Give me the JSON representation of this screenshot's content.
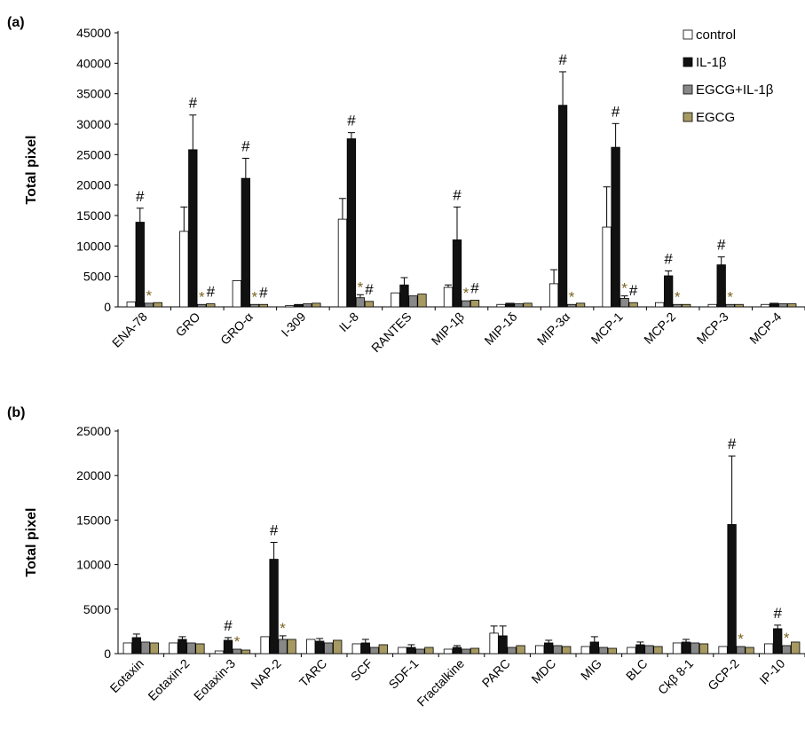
{
  "chart_data": [
    {
      "panel_label": "(a)",
      "type": "bar",
      "ylabel": "Total pixel",
      "ylim": [
        0,
        45000
      ],
      "yticks": [
        0,
        5000,
        10000,
        15000,
        20000,
        25000,
        30000,
        35000,
        40000,
        45000
      ],
      "categories": [
        "ENA-78",
        "GRO",
        "GRO-α",
        "I-309",
        "IL-8",
        "RANTES",
        "MIP-1β",
        "MIP-1δ",
        "MIP-3α",
        "MCP-1",
        "MCP-2",
        "MCP-3",
        "MCP-4"
      ],
      "series": [
        {
          "name": "control",
          "color": "#ffffff",
          "values": [
            800,
            12400,
            4300,
            200,
            14400,
            2300,
            3200,
            400,
            3800,
            13100,
            700,
            400,
            400
          ],
          "errors": [
            0,
            4000,
            0,
            0,
            3400,
            0,
            400,
            0,
            2300,
            6600,
            0,
            0,
            0
          ]
        },
        {
          "name": "IL-1β",
          "color": "#111111",
          "values": [
            13900,
            25800,
            21100,
            400,
            27600,
            3600,
            11000,
            600,
            33100,
            26200,
            5100,
            6900,
            600
          ],
          "errors": [
            2300,
            5700,
            3300,
            0,
            1000,
            1200,
            5400,
            0,
            5500,
            3900,
            800,
            1300,
            0
          ]
        },
        {
          "name": "EGCG+IL-1β",
          "color": "#888888",
          "values": [
            600,
            400,
            400,
            500,
            1500,
            1800,
            1000,
            500,
            400,
            1400,
            400,
            400,
            500
          ],
          "errors": [
            0,
            0,
            0,
            0,
            500,
            0,
            0,
            0,
            0,
            400,
            0,
            0,
            0
          ]
        },
        {
          "name": "EGCG",
          "color": "#a69a62",
          "values": [
            700,
            500,
            400,
            600,
            900,
            2100,
            1100,
            600,
            600,
            700,
            400,
            400,
            500
          ],
          "errors": [
            0,
            0,
            0,
            0,
            0,
            0,
            0,
            0,
            0,
            0,
            0,
            0,
            0
          ]
        }
      ],
      "annotations": [
        {
          "category": "ENA-78",
          "series": "IL-1β",
          "text": "#"
        },
        {
          "category": "ENA-78",
          "series": "EGCG+IL-1β",
          "text": "*"
        },
        {
          "category": "GRO",
          "series": "IL-1β",
          "text": "#"
        },
        {
          "category": "GRO",
          "series": "EGCG+IL-1β",
          "text": "*"
        },
        {
          "category": "GRO",
          "series": "EGCG",
          "text": "#"
        },
        {
          "category": "GRO-α",
          "series": "IL-1β",
          "text": "#"
        },
        {
          "category": "GRO-α",
          "series": "EGCG+IL-1β",
          "text": "*"
        },
        {
          "category": "GRO-α",
          "series": "EGCG",
          "text": "#"
        },
        {
          "category": "IL-8",
          "series": "IL-1β",
          "text": "#"
        },
        {
          "category": "IL-8",
          "series": "EGCG+IL-1β",
          "text": "*"
        },
        {
          "category": "IL-8",
          "series": "EGCG",
          "text": "#"
        },
        {
          "category": "MIP-1β",
          "series": "IL-1β",
          "text": "#"
        },
        {
          "category": "MIP-1β",
          "series": "EGCG+IL-1β",
          "text": "*"
        },
        {
          "category": "MIP-1β",
          "series": "EGCG",
          "text": "#"
        },
        {
          "category": "MIP-3α",
          "series": "IL-1β",
          "text": "#"
        },
        {
          "category": "MIP-3α",
          "series": "EGCG+IL-1β",
          "text": "*"
        },
        {
          "category": "MCP-1",
          "series": "IL-1β",
          "text": "#"
        },
        {
          "category": "MCP-1",
          "series": "EGCG+IL-1β",
          "text": "*"
        },
        {
          "category": "MCP-1",
          "series": "EGCG",
          "text": "#"
        },
        {
          "category": "MCP-2",
          "series": "IL-1β",
          "text": "#"
        },
        {
          "category": "MCP-2",
          "series": "EGCG+IL-1β",
          "text": "*"
        },
        {
          "category": "MCP-3",
          "series": "IL-1β",
          "text": "#"
        },
        {
          "category": "MCP-3",
          "series": "EGCG+IL-1β",
          "text": "*"
        }
      ],
      "legend": {
        "placement": "top-right"
      }
    },
    {
      "panel_label": "(b)",
      "type": "bar",
      "ylabel": "Total pixel",
      "ylim": [
        0,
        25000
      ],
      "yticks": [
        0,
        5000,
        10000,
        15000,
        20000,
        25000
      ],
      "categories": [
        "Eotaxin",
        "Eotaxin-2",
        "Eotaxin-3",
        "NAP-2",
        "TARC",
        "SCF",
        "SDF-1",
        "Fractalkine",
        "PARC",
        "MDC",
        "MIG",
        "BLC",
        "Ckβ 8-1",
        "GCP-2",
        "IP-10"
      ],
      "series": [
        {
          "name": "control",
          "color": "#ffffff",
          "values": [
            1200,
            1200,
            300,
            1900,
            1600,
            1100,
            700,
            500,
            2300,
            900,
            800,
            700,
            1200,
            800,
            1100
          ],
          "errors": [
            0,
            0,
            0,
            0,
            0,
            0,
            0,
            0,
            800,
            0,
            0,
            0,
            0,
            0,
            0
          ]
        },
        {
          "name": "IL-1β",
          "color": "#111111",
          "values": [
            1800,
            1600,
            1500,
            10600,
            1400,
            1200,
            700,
            700,
            2000,
            1200,
            1300,
            1000,
            1300,
            14500,
            2800
          ],
          "errors": [
            400,
            300,
            300,
            1900,
            300,
            400,
            300,
            200,
            1100,
            300,
            600,
            300,
            300,
            7700,
            400
          ]
        },
        {
          "name": "EGCG+IL-1β",
          "color": "#888888",
          "values": [
            1300,
            1200,
            500,
            1600,
            1200,
            700,
            500,
            500,
            700,
            900,
            700,
            900,
            1200,
            800,
            900
          ],
          "errors": [
            0,
            0,
            0,
            400,
            0,
            0,
            0,
            0,
            0,
            0,
            0,
            0,
            0,
            0,
            0
          ]
        },
        {
          "name": "EGCG",
          "color": "#a69a62",
          "values": [
            1200,
            1100,
            400,
            1600,
            1500,
            1000,
            700,
            600,
            900,
            800,
            600,
            800,
            1100,
            700,
            1300
          ],
          "errors": [
            0,
            0,
            0,
            0,
            0,
            0,
            0,
            0,
            0,
            0,
            0,
            0,
            0,
            0,
            0
          ]
        }
      ],
      "annotations": [
        {
          "category": "Eotaxin-3",
          "series": "IL-1β",
          "text": "#"
        },
        {
          "category": "Eotaxin-3",
          "series": "EGCG+IL-1β",
          "text": "*"
        },
        {
          "category": "NAP-2",
          "series": "IL-1β",
          "text": "#"
        },
        {
          "category": "NAP-2",
          "series": "EGCG+IL-1β",
          "text": "*"
        },
        {
          "category": "GCP-2",
          "series": "IL-1β",
          "text": "#"
        },
        {
          "category": "GCP-2",
          "series": "EGCG+IL-1β",
          "text": "*"
        },
        {
          "category": "IP-10",
          "series": "IL-1β",
          "text": "#"
        },
        {
          "category": "IP-10",
          "series": "EGCG+IL-1β",
          "text": "*"
        }
      ]
    }
  ]
}
